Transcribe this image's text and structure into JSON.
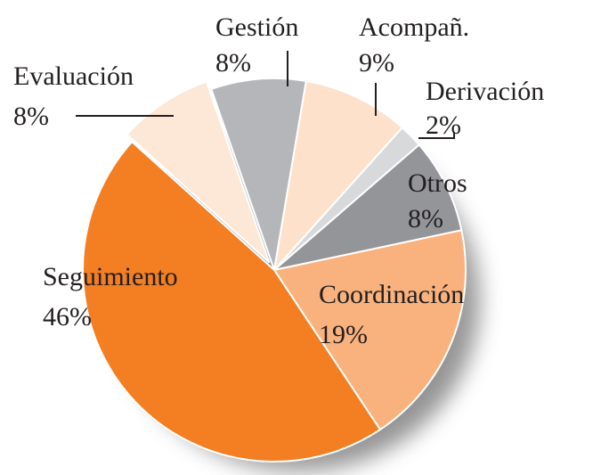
{
  "chart_data": {
    "type": "pie",
    "categories": [
      "Evaluación",
      "Gestión",
      "Acompañ.",
      "Derivación",
      "Otros",
      "Coordinación",
      "Seguimiento"
    ],
    "values": [
      8,
      8,
      9,
      2,
      8,
      19,
      46
    ],
    "value_labels": [
      "8%",
      "8%",
      "9%",
      "2%",
      "8%",
      "19%",
      "46%"
    ],
    "colors": [
      "#fde7d6",
      "#b4b6b9",
      "#fde1cb",
      "#d8d9db",
      "#939598",
      "#f9b27d",
      "#f47e22"
    ]
  }
}
